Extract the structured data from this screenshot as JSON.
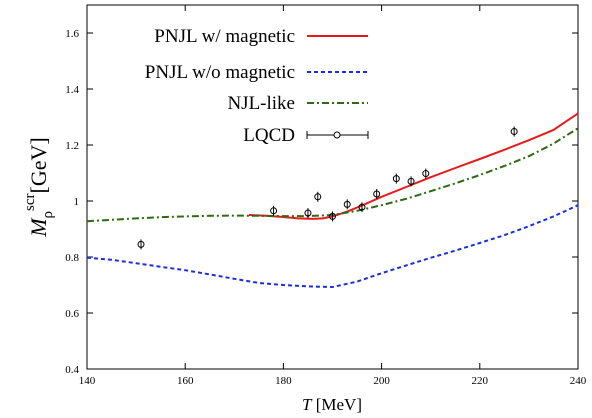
{
  "chart_data": {
    "type": "line",
    "xlabel": {
      "var": "T",
      "unit": " [MeV]"
    },
    "ylabel": {
      "var": "M",
      "sub": "ρ",
      "sup": "scr",
      "unit": "[GeV]"
    },
    "xlim": [
      140,
      240
    ],
    "ylim": [
      0.4,
      1.7
    ],
    "x_ticks": [
      "140",
      "160",
      "180",
      "200",
      "220",
      "240"
    ],
    "y_ticks": [
      "0.4",
      "0.6",
      "0.8",
      "1",
      "1.2",
      "1.4",
      "1.6"
    ],
    "grid": false,
    "legend_position": "top-left",
    "series": [
      {
        "name": "PNJL w/ magnetic",
        "style": "solid",
        "color": "#e8191c",
        "x": [
          173,
          176,
          180,
          183,
          186,
          188,
          190,
          193,
          196,
          200,
          205,
          210,
          215,
          220,
          225,
          230,
          235,
          240
        ],
        "y": [
          0.95,
          0.948,
          0.943,
          0.938,
          0.936,
          0.938,
          0.945,
          0.962,
          0.984,
          1.015,
          1.05,
          1.085,
          1.118,
          1.15,
          1.183,
          1.217,
          1.254,
          1.313
        ]
      },
      {
        "name": "PNJL w/o magnetic",
        "style": "dashed",
        "color": "#1a2ee0",
        "x": [
          140,
          145,
          150,
          155,
          160,
          165,
          170,
          175,
          180,
          185,
          190,
          195,
          200,
          205,
          210,
          215,
          220,
          225,
          230,
          235,
          240
        ],
        "y": [
          0.798,
          0.79,
          0.778,
          0.765,
          0.753,
          0.738,
          0.722,
          0.707,
          0.7,
          0.695,
          0.693,
          0.712,
          0.742,
          0.77,
          0.797,
          0.823,
          0.85,
          0.878,
          0.91,
          0.945,
          0.985
        ]
      },
      {
        "name": "NJL-like",
        "style": "dashdot",
        "color": "#2f6a12",
        "x": [
          140,
          145,
          150,
          155,
          160,
          165,
          170,
          175,
          180,
          185,
          190,
          195,
          200,
          205,
          210,
          215,
          220,
          225,
          230,
          235,
          240
        ],
        "y": [
          0.928,
          0.933,
          0.938,
          0.942,
          0.945,
          0.947,
          0.948,
          0.947,
          0.946,
          0.946,
          0.95,
          0.965,
          0.985,
          1.008,
          1.035,
          1.063,
          1.093,
          1.125,
          1.16,
          1.205,
          1.26
        ]
      }
    ],
    "points": {
      "name": "LQCD",
      "x": [
        151,
        178,
        185,
        187,
        190,
        193,
        196,
        199,
        203,
        206,
        209,
        227
      ],
      "y": [
        0.845,
        0.965,
        0.957,
        1.015,
        0.945,
        0.988,
        0.978,
        1.025,
        1.08,
        1.07,
        1.098,
        1.248
      ]
    }
  }
}
